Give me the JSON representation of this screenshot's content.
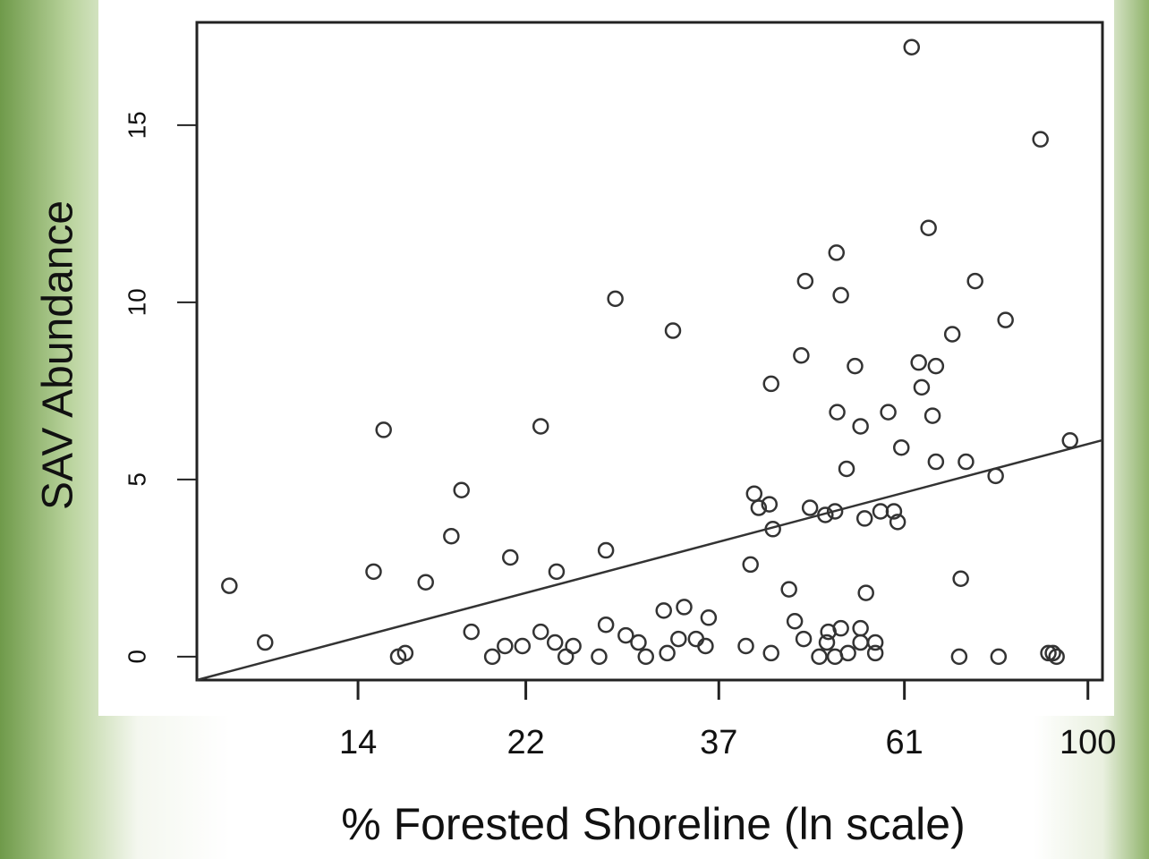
{
  "chart_data": {
    "type": "scatter",
    "x_label": "% Forested Shoreline (ln scale)",
    "y_label": "SAV Abundance",
    "xscale": "log",
    "xlim": [
      9.07,
      104
    ],
    "ylim": [
      -0.66,
      17.9
    ],
    "xticks": [
      14,
      22,
      37,
      61,
      100
    ],
    "yticks": [
      0,
      5,
      10,
      15
    ],
    "color": "#333333",
    "x": [
      9.9,
      10.9,
      15.0,
      14.6,
      15.6,
      15.9,
      16.8,
      18.0,
      18.5,
      19.0,
      20.1,
      20.8,
      21.1,
      21.8,
      22.9,
      22.9,
      23.9,
      23.8,
      24.5,
      25.0,
      27.3,
      27.3,
      28.0,
      26.8,
      28.8,
      29.8,
      30.4,
      32.7,
      31.9,
      32.2,
      33.2,
      33.7,
      34.8,
      35.7,
      36.0,
      39.8,
      40.3,
      40.7,
      41.2,
      42.4,
      42.6,
      42.8,
      42.6,
      44.7,
      45.4,
      46.5,
      46.2,
      46.7,
      47.3,
      48.5,
      49.3,
      49.5,
      49.7,
      50.6,
      50.6,
      50.9,
      50.8,
      51.4,
      51.4,
      52.2,
      52.4,
      53.4,
      54.2,
      54.2,
      54.8,
      55.0,
      54.2,
      56.4,
      56.4,
      57.2,
      58.4,
      59.3,
      59.9,
      60.5,
      62.2,
      63.4,
      63.9,
      65.1,
      65.8,
      66.4,
      66.4,
      69.4,
      71.0,
      70.7,
      72.0,
      73.8,
      78.0,
      78.6,
      80.1,
      88.0,
      89.9,
      91.0,
      91.9,
      95.3
    ],
    "values": [
      2.0,
      0.4,
      6.4,
      2.4,
      0,
      0.1,
      2.1,
      3.4,
      4.7,
      0.7,
      0,
      0.3,
      2.8,
      0.3,
      6.5,
      0.7,
      2.4,
      0.4,
      0,
      0.3,
      3.0,
      0.9,
      10.1,
      0,
      0.6,
      0.4,
      0,
      9.2,
      1.3,
      0.1,
      0.5,
      1.4,
      0.5,
      0.3,
      1.1,
      0.3,
      2.6,
      4.6,
      4.2,
      4.3,
      7.7,
      3.6,
      0.1,
      1.9,
      1.0,
      0.5,
      8.5,
      10.6,
      4.2,
      0,
      4.0,
      0.4,
      0.7,
      4.1,
      0,
      6.9,
      11.4,
      10.2,
      0.8,
      5.3,
      0.1,
      8.2,
      6.5,
      0.8,
      3.9,
      1.8,
      0.4,
      0.4,
      0.1,
      4.1,
      6.9,
      4.1,
      3.8,
      5.9,
      17.2,
      8.3,
      7.6,
      12.1,
      6.8,
      8.2,
      5.5,
      9.1,
      2.2,
      0,
      5.5,
      10.6,
      5.1,
      0,
      9.5,
      14.6,
      0.1,
      0.1,
      0,
      6.1
    ],
    "fit_line": {
      "x": [
        9.07,
        104
      ],
      "y": [
        -0.66,
        6.11
      ]
    }
  }
}
